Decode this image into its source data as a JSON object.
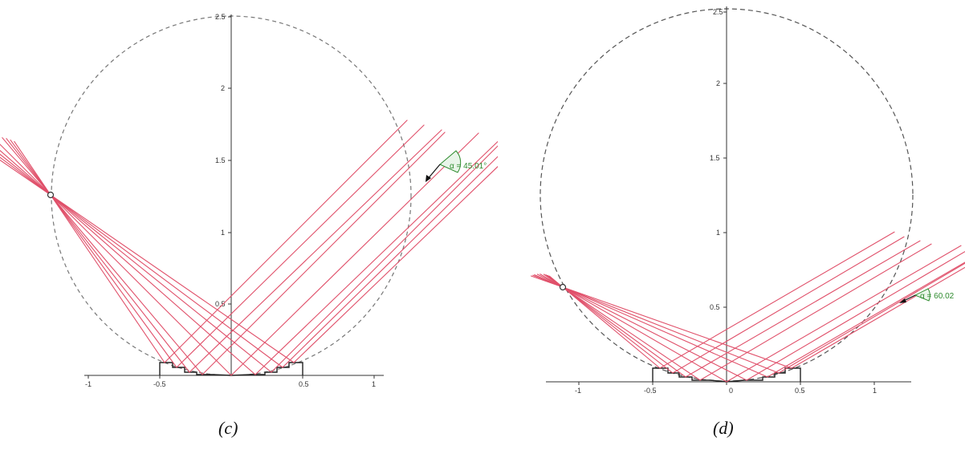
{
  "figures": [
    {
      "caption": "(c)",
      "angle_label": "α = 45.01°",
      "y_ticks": [
        "0.5",
        "1",
        "1.5",
        "2",
        "2.5"
      ],
      "x_ticks": [
        "-1",
        "-0.5",
        "0.5",
        "1"
      ],
      "colors": {
        "rays": "#e0506a",
        "circle": "#777777",
        "axis": "#333333",
        "angle": "#2e8b2e"
      }
    },
    {
      "caption": "(d)",
      "angle_label": "α = 60.02",
      "y_ticks": [
        "0.5",
        "1",
        "1.5",
        "2",
        "2.5"
      ],
      "x_ticks": [
        "-1",
        "-0.5",
        "0",
        "0.5",
        "1"
      ],
      "colors": {
        "rays": "#e0506a",
        "circle": "#777777",
        "axis": "#333333",
        "angle": "#2e8b2e"
      }
    }
  ]
}
